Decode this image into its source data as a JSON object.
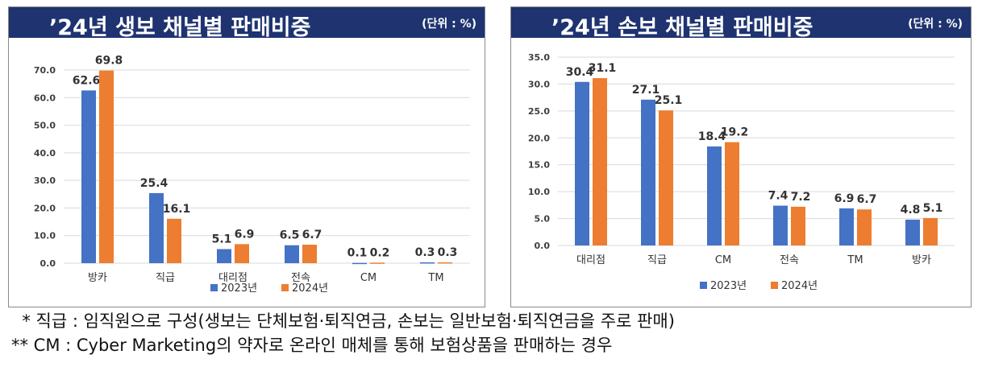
{
  "chart_data": [
    {
      "type": "bar",
      "title": "’24년 생보 채널별 판매비중",
      "unit": "(단위 : %)",
      "categories": [
        "방카",
        "직급",
        "대리점",
        "전속",
        "CM",
        "TM"
      ],
      "series": [
        {
          "name": "2023년",
          "values": [
            62.6,
            25.4,
            5.1,
            6.5,
            0.1,
            0.3
          ]
        },
        {
          "name": "2024년",
          "values": [
            69.8,
            16.1,
            6.9,
            6.7,
            0.2,
            0.3
          ]
        }
      ],
      "value_labels": [
        [
          "62.6",
          "25.4",
          "5.1",
          "6.5",
          "0.1",
          "0.3"
        ],
        [
          "69.8",
          "16.1",
          "6.9",
          "6.7",
          "0.2",
          "0.3"
        ]
      ],
      "yticks": [
        "0.0",
        "10.0",
        "20.0",
        "30.0",
        "40.0",
        "50.0",
        "60.0",
        "70.0"
      ],
      "ylim": [
        0,
        70
      ],
      "legend": "bottom",
      "colors": [
        "#4472c4",
        "#ed7d31"
      ]
    },
    {
      "type": "bar",
      "title": "’24년 손보 채널별 판매비중",
      "unit": "(단위 : %)",
      "categories": [
        "대리점",
        "직급",
        "CM",
        "전속",
        "TM",
        "방카"
      ],
      "series": [
        {
          "name": "2023년",
          "values": [
            30.4,
            27.1,
            18.4,
            7.4,
            6.9,
            4.8
          ]
        },
        {
          "name": "2024년",
          "values": [
            31.1,
            25.1,
            19.2,
            7.2,
            6.7,
            5.1
          ]
        }
      ],
      "value_labels": [
        [
          "30.4",
          "27.1",
          "18.4",
          "7.4",
          "6.9",
          "4.8"
        ],
        [
          "31.1",
          "25.1",
          "19.2",
          "7.2",
          "6.7",
          "5.1"
        ]
      ],
      "yticks": [
        "0.0",
        "5.0",
        "10.0",
        "15.0",
        "20.0",
        "25.0",
        "30.0",
        "35.0"
      ],
      "ylim": [
        0,
        35
      ],
      "legend": "bottom",
      "colors": [
        "#4472c4",
        "#ed7d31"
      ]
    }
  ],
  "notes": [
    "  * 직급 : 임직원으로 구성(생보는 단체보험·퇴직연금, 손보는 일반보험·퇴직연금을 주로 판매)",
    "** CM : Cyber Marketing의 약자로 온라인 매체를 통해 보험상품을 판매하는 경우"
  ]
}
